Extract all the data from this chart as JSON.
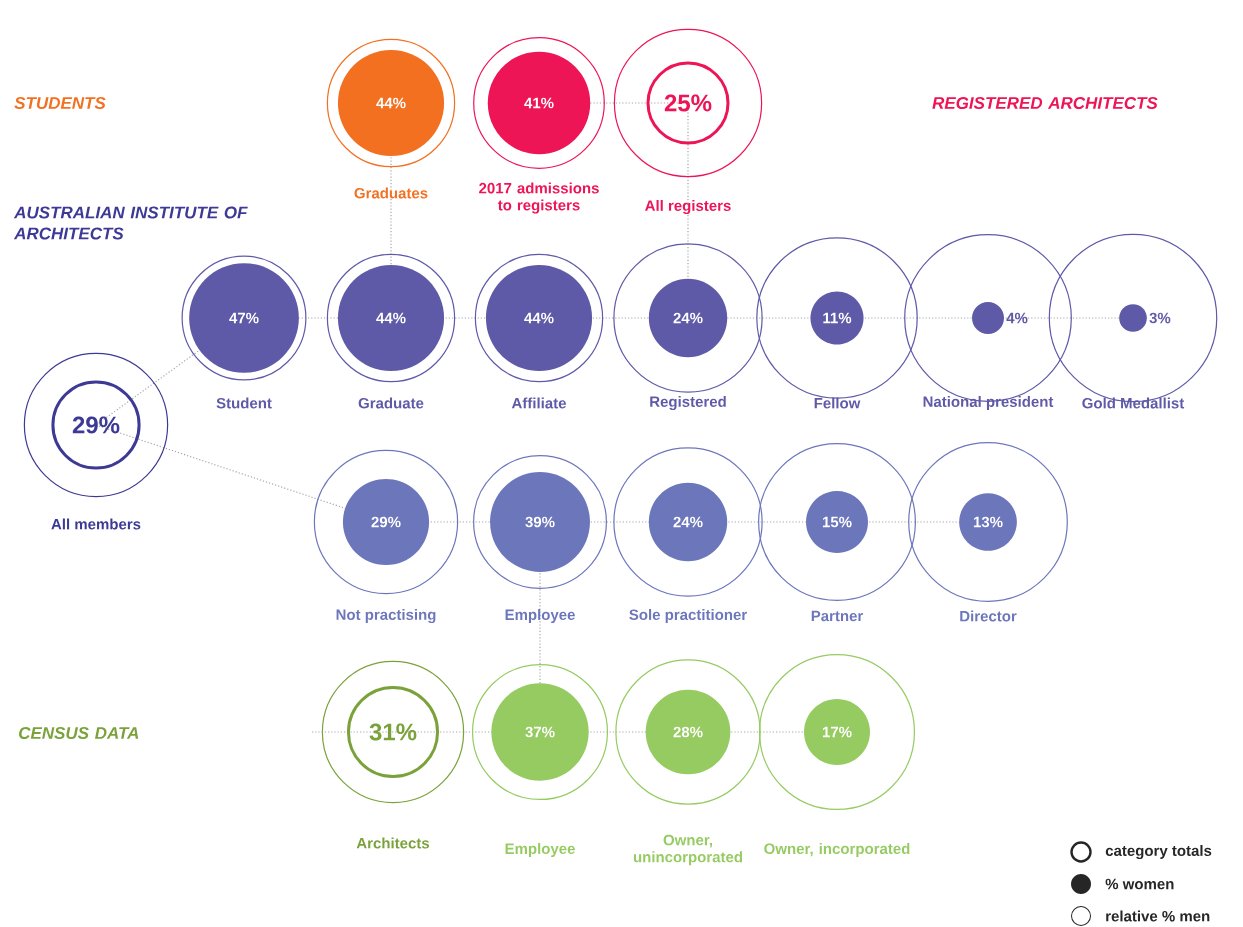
{
  "chart_data": {
    "type": "other",
    "annotations": [
      "category totals",
      "% women",
      "relative % men"
    ],
    "categories": [
      "Graduates",
      "2017 admissions to registers",
      "All registers",
      "All members",
      "Student",
      "Graduate",
      "Affiliate",
      "Registered",
      "Fellow",
      "National president",
      "Gold Medallist",
      "Not practising",
      "Employee",
      "Sole practitioner",
      "Partner",
      "Director",
      "Architects",
      "Employee",
      "Owner, unincorporated",
      "Owner, incorporated"
    ],
    "series": [
      {
        "name": "STUDENTS",
        "color": "#f37021",
        "values": [
          44,
          null,
          null,
          null,
          null,
          null,
          null,
          null,
          null,
          null,
          null,
          null,
          null,
          null,
          null,
          null,
          null,
          null,
          null,
          null
        ],
        "value_labels": [
          "44%",
          null,
          null,
          null,
          null,
          null,
          null,
          null,
          null,
          null,
          null,
          null,
          null,
          null,
          null,
          null,
          null,
          null,
          null,
          null
        ]
      },
      {
        "name": "REGISTERED ARCHITECTS",
        "color": "#ed1556",
        "values": [
          null,
          41,
          null,
          null,
          null,
          null,
          null,
          null,
          null,
          null,
          null,
          null,
          null,
          null,
          null,
          null,
          null,
          null,
          null,
          null
        ],
        "value_labels": [
          null,
          "41%",
          null,
          null,
          null,
          null,
          null,
          null,
          null,
          null,
          null,
          null,
          null,
          null,
          null,
          null,
          null,
          null,
          null,
          null
        ]
      },
      {
        "color": "#ed1556",
        "marker": "circle",
        "values": [
          null,
          null,
          25,
          null,
          null,
          null,
          null,
          null,
          null,
          null,
          null,
          null,
          null,
          null,
          null,
          null,
          null,
          null,
          null,
          null
        ],
        "value_labels": [
          null,
          null,
          "25%",
          null,
          null,
          null,
          null,
          null,
          null,
          null,
          null,
          null,
          null,
          null,
          null,
          null,
          null,
          null,
          null,
          null
        ]
      },
      {
        "name": "AUSTRALIAN INSTITUTE OF ARCHITECTS",
        "color": "#3d3a96",
        "marker": "circle",
        "values": [
          null,
          null,
          null,
          29,
          null,
          null,
          null,
          null,
          null,
          null,
          null,
          null,
          null,
          null,
          null,
          null,
          null,
          null,
          null,
          null
        ],
        "value_labels": [
          null,
          null,
          null,
          "29%",
          null,
          null,
          null,
          null,
          null,
          null,
          null,
          null,
          null,
          null,
          null,
          null,
          null,
          null,
          null,
          null
        ]
      },
      {
        "color": "#5f5aa8",
        "values": [
          null,
          null,
          null,
          null,
          47,
          44,
          44,
          24,
          11,
          4,
          3,
          null,
          null,
          null,
          null,
          null,
          null,
          null,
          null,
          null
        ],
        "value_labels": [
          null,
          null,
          null,
          null,
          "47%",
          "44%",
          "44%",
          "24%",
          "11%",
          "4%",
          "3%",
          null,
          null,
          null,
          null,
          null,
          null,
          null,
          null,
          null
        ]
      },
      {
        "color": "#6c77bb",
        "values": [
          null,
          null,
          null,
          null,
          null,
          null,
          null,
          null,
          null,
          null,
          null,
          29,
          39,
          24,
          15,
          13,
          null,
          null,
          null,
          null
        ],
        "value_labels": [
          null,
          null,
          null,
          null,
          null,
          null,
          null,
          null,
          null,
          null,
          null,
          "29%",
          "39%",
          "24%",
          "15%",
          "13%",
          null,
          null,
          null,
          null
        ]
      },
      {
        "name": "CENSUS DATA",
        "color": "#7ba23a",
        "marker": "circle",
        "values": [
          null,
          null,
          null,
          null,
          null,
          null,
          null,
          null,
          null,
          null,
          null,
          null,
          null,
          null,
          null,
          null,
          31,
          null,
          null,
          null
        ],
        "value_labels": [
          null,
          null,
          null,
          null,
          null,
          null,
          null,
          null,
          null,
          null,
          null,
          null,
          null,
          null,
          null,
          null,
          "31%",
          null,
          null,
          null
        ]
      },
      {
        "color": "#96cb62",
        "values": [
          null,
          null,
          null,
          null,
          null,
          null,
          null,
          null,
          null,
          null,
          null,
          null,
          null,
          null,
          null,
          null,
          null,
          37,
          28,
          17
        ],
        "value_labels": [
          null,
          null,
          null,
          null,
          null,
          null,
          null,
          null,
          null,
          null,
          null,
          null,
          null,
          null,
          null,
          null,
          null,
          "37%",
          "28%",
          "17%"
        ]
      }
    ]
  }
}
